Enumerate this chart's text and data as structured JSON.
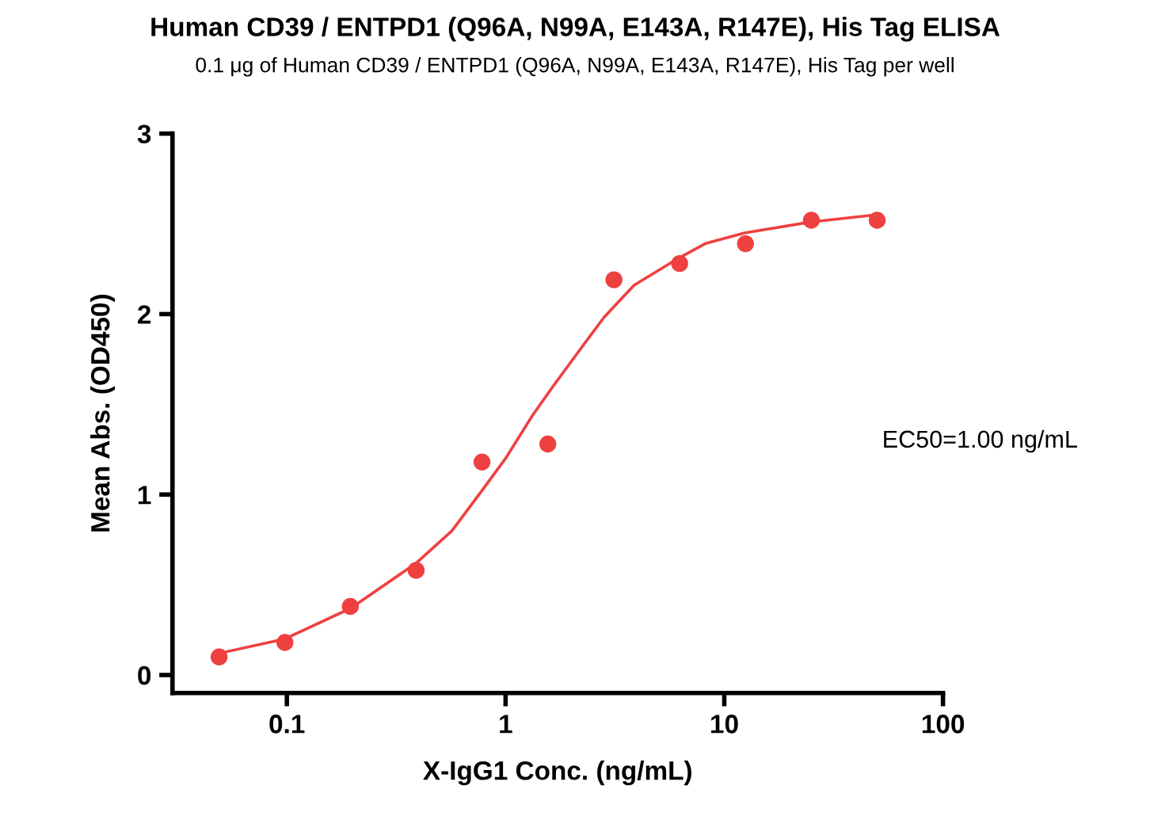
{
  "chart_data": {
    "type": "scatter",
    "title": "Human CD39 / ENTPD1 (Q96A, N99A, E143A, R147E), His Tag ELISA",
    "subtitle": "0.1 μg of Human CD39 / ENTPD1 (Q96A, N99A, E143A, R147E), His Tag per well",
    "xlabel": "X-IgG1 Conc. (ng/mL)",
    "ylabel": "Mean Abs. (OD450)",
    "x": [
      0.049,
      0.098,
      0.195,
      0.39,
      0.78,
      1.56,
      3.13,
      6.25,
      12.5,
      25,
      50
    ],
    "series": [
      {
        "color": "#ef4040",
        "marker": "circle",
        "values": [
          0.1,
          0.18,
          0.38,
          0.58,
          1.18,
          1.28,
          2.19,
          2.28,
          2.39,
          2.52,
          2.52
        ]
      },
      {
        "type": "line",
        "color": "#ef4040",
        "marker": "none",
        "line_style": "solid",
        "x": [
          0.049,
          0.098,
          0.196,
          0.39,
          0.569,
          0.778,
          1.0,
          1.33,
          1.65,
          2.15,
          2.81,
          3.87,
          6.19,
          8.17,
          12.4,
          24.8,
          49.2
        ],
        "values": [
          0.12,
          0.2,
          0.37,
          0.62,
          0.8,
          1.02,
          1.2,
          1.44,
          1.6,
          1.79,
          1.98,
          2.16,
          2.31,
          2.39,
          2.45,
          2.51,
          2.55
        ]
      }
    ],
    "annotations": [
      "EC50=1.00 ng/mL"
    ],
    "log": "x",
    "xlim": [
      0.03,
      100
    ],
    "xticks": [
      0.1,
      1,
      10,
      100
    ],
    "ylim": [
      -0.1,
      3
    ],
    "yticks": [
      0,
      1,
      2,
      3
    ],
    "grid": false,
    "legend": false
  }
}
